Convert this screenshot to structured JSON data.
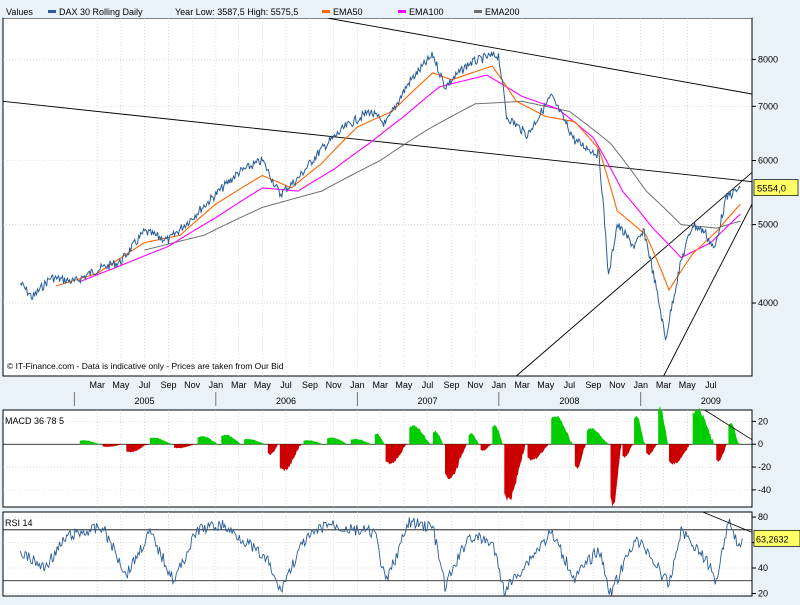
{
  "colors": {
    "background": "#e8f2f8",
    "plot_background": "#ffffff",
    "price": "#2a5d98",
    "ema50": "#ff6600",
    "ema100": "#ff00ff",
    "ema200": "#6e6e6e",
    "macd_positive": "#00cc00",
    "macd_negative": "#cc0000",
    "rsi": "#2a5d98",
    "value_box": "#ffff66",
    "trendline": "#000000"
  },
  "chart_data": [
    {
      "type": "line",
      "title": "",
      "legend": {
        "label": "Values",
        "placement": "top-left",
        "items": [
          {
            "name": "DAX 30  Rolling Daily",
            "color": "#2a5d98"
          },
          {
            "text": "Year Low: 3587,5  High: 5575,5"
          },
          {
            "name": "EMA50",
            "color": "#ff6600"
          },
          {
            "name": "EMA100",
            "color": "#ff00ff"
          },
          {
            "name": "EMA200",
            "color": "#6e6e6e"
          }
        ]
      },
      "x_range": [
        "2004-07-01",
        "2009-10-15"
      ],
      "y_scale": "log",
      "ylim": [
        3250,
        9000
      ],
      "y_ticks": [
        4000,
        5000,
        6000,
        7000,
        8000
      ],
      "grid": true,
      "last_value_label": "5554,0",
      "last_value": 5554.0,
      "copyright": "© IT-Finance.com - Data is indicative only - Prices are taken from Our Bid",
      "x_axis": {
        "month_labels": [
          "Mar",
          "May",
          "Jul",
          "Sep",
          "Nov",
          "Jan",
          "Mar",
          "May",
          "Jul",
          "Sep",
          "Nov",
          "Jan",
          "Mar",
          "May",
          "Jul",
          "Sep",
          "Nov",
          "Jan",
          "Mar",
          "May",
          "Jul",
          "Sep",
          "Nov",
          "Jan",
          "Mar",
          "May",
          "Jul"
        ],
        "year_labels": [
          "2005",
          "2006",
          "2007",
          "2008",
          "2009"
        ]
      },
      "series": [
        {
          "name": "DAX 30  Rolling Daily",
          "points": [
            {
              "x": "2004-08-15",
              "y": 4230
            },
            {
              "x": "2004-09-15",
              "y": 4060
            },
            {
              "x": "2004-11-01",
              "y": 4300
            },
            {
              "x": "2005-01-01",
              "y": 4250
            },
            {
              "x": "2005-03-01",
              "y": 4400
            },
            {
              "x": "2005-05-01",
              "y": 4500
            },
            {
              "x": "2005-07-01",
              "y": 4900
            },
            {
              "x": "2005-09-01",
              "y": 4780
            },
            {
              "x": "2005-11-01",
              "y": 5100
            },
            {
              "x": "2006-01-01",
              "y": 5450
            },
            {
              "x": "2006-03-01",
              "y": 5800
            },
            {
              "x": "2006-05-01",
              "y": 6000
            },
            {
              "x": "2006-06-15",
              "y": 5450
            },
            {
              "x": "2006-08-01",
              "y": 5700
            },
            {
              "x": "2006-10-01",
              "y": 6200
            },
            {
              "x": "2006-12-01",
              "y": 6600
            },
            {
              "x": "2007-02-01",
              "y": 6900
            },
            {
              "x": "2007-03-15",
              "y": 6650
            },
            {
              "x": "2007-05-15",
              "y": 7500
            },
            {
              "x": "2007-07-15",
              "y": 8100
            },
            {
              "x": "2007-08-15",
              "y": 7400
            },
            {
              "x": "2007-10-15",
              "y": 7900
            },
            {
              "x": "2007-11-30",
              "y": 8050
            },
            {
              "x": "2007-12-31",
              "y": 8100
            },
            {
              "x": "2008-01-21",
              "y": 6800
            },
            {
              "x": "2008-03-15",
              "y": 6450
            },
            {
              "x": "2008-05-15",
              "y": 7200
            },
            {
              "x": "2008-07-15",
              "y": 6350
            },
            {
              "x": "2008-09-15",
              "y": 6100
            },
            {
              "x": "2008-10-10",
              "y": 4300
            },
            {
              "x": "2008-11-01",
              "y": 5000
            },
            {
              "x": "2008-12-15",
              "y": 4700
            },
            {
              "x": "2009-01-10",
              "y": 4900
            },
            {
              "x": "2009-03-06",
              "y": 3600
            },
            {
              "x": "2009-04-15",
              "y": 4500
            },
            {
              "x": "2009-05-15",
              "y": 5000
            },
            {
              "x": "2009-06-15",
              "y": 4900
            },
            {
              "x": "2009-07-10",
              "y": 4650
            },
            {
              "x": "2009-08-10",
              "y": 5400
            },
            {
              "x": "2009-09-15",
              "y": 5554
            }
          ]
        },
        {
          "name": "EMA50",
          "points": [
            {
              "x": "2004-11-15",
              "y": 4200
            },
            {
              "x": "2005-03-01",
              "y": 4350
            },
            {
              "x": "2005-07-01",
              "y": 4750
            },
            {
              "x": "2005-10-01",
              "y": 4850
            },
            {
              "x": "2006-01-01",
              "y": 5300
            },
            {
              "x": "2006-05-01",
              "y": 5750
            },
            {
              "x": "2006-07-15",
              "y": 5550
            },
            {
              "x": "2006-10-01",
              "y": 5950
            },
            {
              "x": "2007-01-01",
              "y": 6600
            },
            {
              "x": "2007-04-01",
              "y": 6900
            },
            {
              "x": "2007-07-15",
              "y": 7700
            },
            {
              "x": "2007-09-01",
              "y": 7550
            },
            {
              "x": "2007-12-15",
              "y": 7850
            },
            {
              "x": "2008-02-15",
              "y": 7100
            },
            {
              "x": "2008-05-01",
              "y": 6800
            },
            {
              "x": "2008-07-15",
              "y": 6700
            },
            {
              "x": "2008-09-15",
              "y": 6200
            },
            {
              "x": "2008-11-01",
              "y": 5200
            },
            {
              "x": "2009-01-15",
              "y": 4850
            },
            {
              "x": "2009-03-15",
              "y": 4150
            },
            {
              "x": "2009-05-15",
              "y": 4600
            },
            {
              "x": "2009-07-15",
              "y": 4900
            },
            {
              "x": "2009-09-15",
              "y": 5300
            }
          ]
        },
        {
          "name": "EMA100",
          "points": [
            {
              "x": "2005-01-15",
              "y": 4250
            },
            {
              "x": "2005-05-01",
              "y": 4450
            },
            {
              "x": "2005-09-01",
              "y": 4700
            },
            {
              "x": "2006-01-01",
              "y": 5100
            },
            {
              "x": "2006-05-01",
              "y": 5550
            },
            {
              "x": "2006-08-01",
              "y": 5500
            },
            {
              "x": "2006-11-01",
              "y": 5850
            },
            {
              "x": "2007-02-01",
              "y": 6300
            },
            {
              "x": "2007-05-01",
              "y": 6800
            },
            {
              "x": "2007-08-01",
              "y": 7400
            },
            {
              "x": "2007-12-01",
              "y": 7650
            },
            {
              "x": "2008-03-01",
              "y": 7200
            },
            {
              "x": "2008-06-01",
              "y": 6950
            },
            {
              "x": "2008-09-01",
              "y": 6400
            },
            {
              "x": "2008-11-15",
              "y": 5500
            },
            {
              "x": "2009-02-01",
              "y": 4950
            },
            {
              "x": "2009-04-15",
              "y": 4550
            },
            {
              "x": "2009-07-01",
              "y": 4750
            },
            {
              "x": "2009-09-15",
              "y": 5150
            }
          ]
        },
        {
          "name": "EMA200",
          "points": [
            {
              "x": "2005-07-01",
              "y": 4650
            },
            {
              "x": "2005-12-01",
              "y": 4850
            },
            {
              "x": "2006-05-01",
              "y": 5250
            },
            {
              "x": "2006-10-01",
              "y": 5500
            },
            {
              "x": "2007-03-01",
              "y": 6000
            },
            {
              "x": "2007-07-01",
              "y": 6550
            },
            {
              "x": "2007-11-01",
              "y": 7050
            },
            {
              "x": "2008-03-01",
              "y": 7100
            },
            {
              "x": "2008-07-01",
              "y": 6900
            },
            {
              "x": "2008-10-15",
              "y": 6300
            },
            {
              "x": "2009-01-15",
              "y": 5500
            },
            {
              "x": "2009-04-15",
              "y": 5000
            },
            {
              "x": "2009-07-15",
              "y": 4950
            },
            {
              "x": "2009-09-15",
              "y": 5050
            }
          ]
        }
      ],
      "trendlines": [
        {
          "from": {
            "x": "2004-07-01",
            "y": 7100
          },
          "to": {
            "x": "2009-10-15",
            "y": 5650
          }
        },
        {
          "from": {
            "x": "2006-10-15",
            "y": 9000
          },
          "to": {
            "x": "2009-10-15",
            "y": 7250
          }
        },
        {
          "from": {
            "x": "2008-02-15",
            "y": 3250
          },
          "to": {
            "x": "2009-10-15",
            "y": 5800
          }
        },
        {
          "from": {
            "x": "2009-03-01",
            "y": 3250
          },
          "to": {
            "x": "2009-10-15",
            "y": 5300
          }
        }
      ]
    },
    {
      "type": "bar",
      "title": "MACD 36 78 5",
      "ylim": [
        -55,
        30
      ],
      "y_ticks": [
        -40,
        -20,
        0,
        20
      ],
      "values": [
        {
          "x": "2005-01",
          "y": 3
        },
        {
          "x": "2005-03",
          "y": -2
        },
        {
          "x": "2005-05",
          "y": -6
        },
        {
          "x": "2005-07",
          "y": 5
        },
        {
          "x": "2005-09",
          "y": -3
        },
        {
          "x": "2005-11",
          "y": 6
        },
        {
          "x": "2006-01",
          "y": 7
        },
        {
          "x": "2006-03",
          "y": 4
        },
        {
          "x": "2006-05",
          "y": -8
        },
        {
          "x": "2006-06",
          "y": -20
        },
        {
          "x": "2006-08",
          "y": 3
        },
        {
          "x": "2006-10",
          "y": 5
        },
        {
          "x": "2006-12",
          "y": 4
        },
        {
          "x": "2007-02",
          "y": 8
        },
        {
          "x": "2007-03",
          "y": -15
        },
        {
          "x": "2007-05",
          "y": 14
        },
        {
          "x": "2007-07",
          "y": 10
        },
        {
          "x": "2007-08",
          "y": -26
        },
        {
          "x": "2007-10",
          "y": 8
        },
        {
          "x": "2007-11",
          "y": -5
        },
        {
          "x": "2007-12",
          "y": 15
        },
        {
          "x": "2008-01",
          "y": -42
        },
        {
          "x": "2008-03",
          "y": -12
        },
        {
          "x": "2008-05",
          "y": 22
        },
        {
          "x": "2008-07",
          "y": -18
        },
        {
          "x": "2008-08",
          "y": 12
        },
        {
          "x": "2008-10",
          "y": -47
        },
        {
          "x": "2008-11",
          "y": -10
        },
        {
          "x": "2008-12",
          "y": 22
        },
        {
          "x": "2009-01",
          "y": -8
        },
        {
          "x": "2009-02",
          "y": 28
        },
        {
          "x": "2009-03",
          "y": -15
        },
        {
          "x": "2009-05",
          "y": 27
        },
        {
          "x": "2009-07",
          "y": -13
        },
        {
          "x": "2009-08",
          "y": 16
        },
        {
          "x": "2009-09",
          "y": -3
        }
      ]
    },
    {
      "type": "line",
      "title": "RSI 14",
      "ylim": [
        18,
        84
      ],
      "y_ticks": [
        20,
        40,
        60,
        80
      ],
      "reference_lines": [
        30,
        70
      ],
      "last_value_label": "63,2632",
      "last_value": 63.2632,
      "values": [
        {
          "x": "2004-08",
          "y": 52
        },
        {
          "x": "2004-10",
          "y": 40
        },
        {
          "x": "2004-12",
          "y": 65
        },
        {
          "x": "2005-03",
          "y": 72
        },
        {
          "x": "2005-05",
          "y": 35
        },
        {
          "x": "2005-07",
          "y": 68
        },
        {
          "x": "2005-09",
          "y": 30
        },
        {
          "x": "2005-11",
          "y": 70
        },
        {
          "x": "2006-01",
          "y": 74
        },
        {
          "x": "2006-03",
          "y": 62
        },
        {
          "x": "2006-05",
          "y": 45
        },
        {
          "x": "2006-06",
          "y": 22
        },
        {
          "x": "2006-08",
          "y": 60
        },
        {
          "x": "2006-10",
          "y": 75
        },
        {
          "x": "2006-12",
          "y": 70
        },
        {
          "x": "2007-02",
          "y": 68
        },
        {
          "x": "2007-03",
          "y": 28
        },
        {
          "x": "2007-05",
          "y": 76
        },
        {
          "x": "2007-07",
          "y": 72
        },
        {
          "x": "2007-08",
          "y": 25
        },
        {
          "x": "2007-10",
          "y": 65
        },
        {
          "x": "2007-12",
          "y": 60
        },
        {
          "x": "2008-01",
          "y": 22
        },
        {
          "x": "2008-03",
          "y": 45
        },
        {
          "x": "2008-05",
          "y": 68
        },
        {
          "x": "2008-07",
          "y": 32
        },
        {
          "x": "2008-09",
          "y": 55
        },
        {
          "x": "2008-10",
          "y": 20
        },
        {
          "x": "2008-11",
          "y": 40
        },
        {
          "x": "2008-12",
          "y": 62
        },
        {
          "x": "2009-01",
          "y": 55
        },
        {
          "x": "2009-03",
          "y": 26
        },
        {
          "x": "2009-04",
          "y": 70
        },
        {
          "x": "2009-06",
          "y": 48
        },
        {
          "x": "2009-07",
          "y": 30
        },
        {
          "x": "2009-08",
          "y": 78
        },
        {
          "x": "2009-09",
          "y": 55
        },
        {
          "x": "2009-09-20",
          "y": 63.26
        }
      ]
    }
  ]
}
